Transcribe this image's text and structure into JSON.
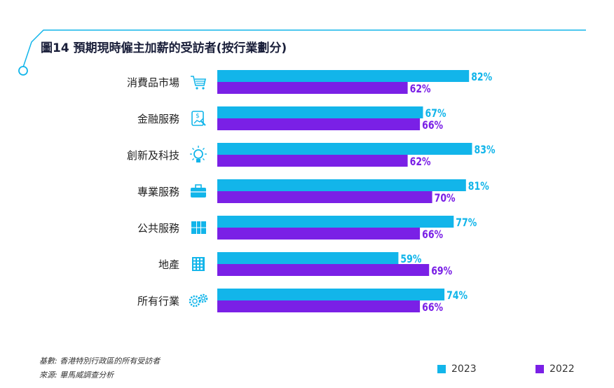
{
  "title": "圖14 預期現時僱主加薪的受訪者(按行業劃分)",
  "colors": {
    "accent": "#12b5ea",
    "series2023": "#12b5ea",
    "series2022": "#7a20e6",
    "title": "#1a1f3a"
  },
  "chart_data": {
    "type": "bar",
    "orientation": "horizontal",
    "categories": [
      "消費品市場",
      "金融服務",
      "創新及科技",
      "專業服務",
      "公共服務",
      "地產",
      "所有行業"
    ],
    "icons": [
      "shopping-cart-icon",
      "finance-chart-icon",
      "lightbulb-icon",
      "briefcase-icon",
      "building-columns-icon",
      "building-icon",
      "gears-icon"
    ],
    "series": [
      {
        "name": "2023",
        "values": [
          82,
          67,
          83,
          81,
          77,
          59,
          74
        ]
      },
      {
        "name": "2022",
        "values": [
          62,
          66,
          62,
          70,
          66,
          69,
          66
        ]
      }
    ],
    "value_suffix": "%",
    "xlim": [
      0,
      100
    ]
  },
  "legend": {
    "s2023": "2023",
    "s2022": "2022"
  },
  "footer": {
    "source1": "基數: 香港特別行政區的所有受訪者",
    "source2": "來源: 畢馬威調查分析"
  }
}
